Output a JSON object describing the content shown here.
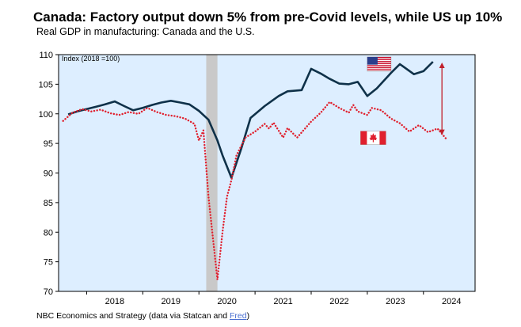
{
  "header": {
    "title": "Canada: Factory output down 5% from pre-Covid levels, while US up 10%",
    "subtitle": "Real GDP in manufacturing: Canada and the U.S."
  },
  "footer": {
    "source_prefix": "NBC Economics and Strategy (data via Statcan and ",
    "source_link": "Fred",
    "source_suffix": ")"
  },
  "chart_data": {
    "type": "line",
    "y_axis_note": "Index (2018 =100)",
    "ylim": [
      70,
      110
    ],
    "yticks": [
      70,
      75,
      80,
      85,
      90,
      95,
      100,
      105,
      110
    ],
    "xlim": [
      2017.5,
      2024.92
    ],
    "xtick_labels": [
      "2018",
      "2019",
      "2020",
      "2021",
      "2022",
      "2023",
      "2024"
    ],
    "grid": false,
    "background_color": "#ddeeff",
    "recession_band": {
      "from": 2020.13,
      "to": 2020.33,
      "color": "#c9c9c9"
    },
    "colors": {
      "us": "#0f3149",
      "canada": "#e0202e",
      "arrow": "#c0202c"
    },
    "series": [
      {
        "key": "us",
        "style": "solid",
        "icon": "us-flag-icon",
        "x": [
          2017.67,
          2017.83,
          2018.0,
          2018.17,
          2018.33,
          2018.5,
          2018.67,
          2018.83,
          2019.0,
          2019.17,
          2019.33,
          2019.5,
          2019.67,
          2019.83,
          2020.0,
          2020.17,
          2020.33,
          2020.42,
          2020.58,
          2020.75,
          2020.92,
          2021.17,
          2021.42,
          2021.58,
          2021.83,
          2022.0,
          2022.17,
          2022.33,
          2022.5,
          2022.67,
          2022.83,
          2023.0,
          2023.17,
          2023.42,
          2023.58,
          2023.83,
          2024.0,
          2024.17
        ],
        "y": [
          99.9,
          100.4,
          100.8,
          101.2,
          101.6,
          102.1,
          101.3,
          100.6,
          101.0,
          101.5,
          101.9,
          102.2,
          101.9,
          101.6,
          100.5,
          99.0,
          95.5,
          93.0,
          89.2,
          94.0,
          99.3,
          101.3,
          103.0,
          103.8,
          104.0,
          107.6,
          106.8,
          105.9,
          105.1,
          105.0,
          105.4,
          103.0,
          104.3,
          106.9,
          108.4,
          106.7,
          107.2,
          108.8
        ]
      },
      {
        "key": "canada",
        "style": "dotted",
        "icon": "canada-flag-icon",
        "x": [
          2017.58,
          2017.75,
          2017.92,
          2018.08,
          2018.25,
          2018.42,
          2018.58,
          2018.75,
          2018.92,
          2019.08,
          2019.25,
          2019.42,
          2019.58,
          2019.75,
          2019.92,
          2020.0,
          2020.08,
          2020.17,
          2020.25,
          2020.33,
          2020.42,
          2020.5,
          2020.58,
          2020.67,
          2020.83,
          2021.0,
          2021.17,
          2021.25,
          2021.33,
          2021.5,
          2021.58,
          2021.75,
          2022.0,
          2022.17,
          2022.33,
          2022.5,
          2022.67,
          2022.75,
          2022.83,
          2023.0,
          2023.08,
          2023.25,
          2023.42,
          2023.58,
          2023.75,
          2023.92,
          2024.08,
          2024.25,
          2024.42
        ],
        "y": [
          98.8,
          100.2,
          100.8,
          100.4,
          100.7,
          100.1,
          99.8,
          100.3,
          100.0,
          101.0,
          100.3,
          99.8,
          99.6,
          99.2,
          98.3,
          95.5,
          97.2,
          86.0,
          79.0,
          72.0,
          80.0,
          86.0,
          88.8,
          93.0,
          96.0,
          97.0,
          98.3,
          97.5,
          98.5,
          96.0,
          97.6,
          96.0,
          98.7,
          100.2,
          102.0,
          101.0,
          100.2,
          101.5,
          100.4,
          99.8,
          101.0,
          100.6,
          99.2,
          98.4,
          97.0,
          98.1,
          96.9,
          97.5,
          95.6
        ]
      }
    ]
  }
}
